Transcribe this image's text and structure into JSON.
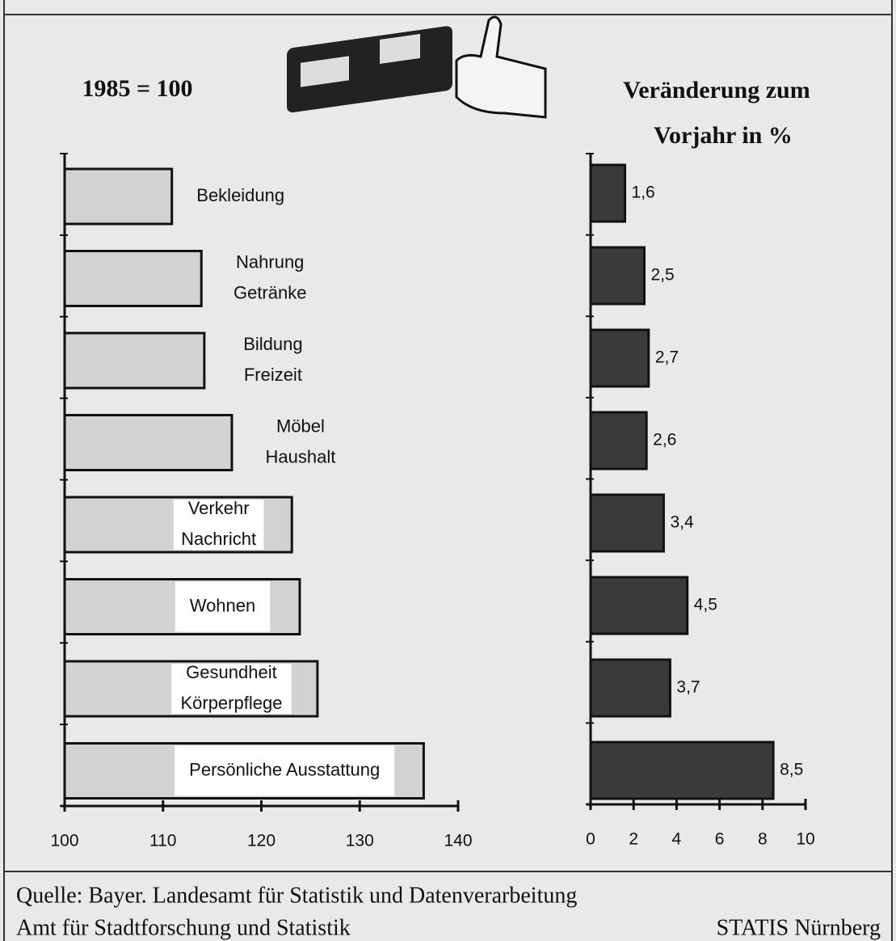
{
  "chart_data": [
    {
      "type": "bar",
      "orientation": "horizontal",
      "title": "1985 = 100",
      "categories": [
        [
          "Bekleidung"
        ],
        [
          "Nahrung",
          "Getränke"
        ],
        [
          "Bildung",
          "Freizeit"
        ],
        [
          "Möbel",
          "Haushalt"
        ],
        [
          "Verkehr",
          "Nachricht"
        ],
        [
          "Wohnen"
        ],
        [
          "Gesundheit",
          "Körperpflege"
        ],
        [
          "Persönliche Ausstattung"
        ]
      ],
      "values": [
        110.9,
        113.9,
        114.2,
        117.0,
        123.1,
        123.9,
        125.7,
        136.5
      ],
      "color": "#d2d2d2",
      "xlim": [
        100,
        140
      ],
      "xticks": [
        100,
        110,
        120,
        130,
        140
      ]
    },
    {
      "type": "bar",
      "orientation": "horizontal",
      "title": [
        "Veränderung zum",
        "Vorjahr in %"
      ],
      "values": [
        1.6,
        2.5,
        2.7,
        2.6,
        3.4,
        4.5,
        3.7,
        8.5
      ],
      "value_labels": [
        "1,6",
        "2,5",
        "2,7",
        "2,6",
        "3,4",
        "4,5",
        "3,7",
        "8,5"
      ],
      "color": "#3a3a3a",
      "xlim": [
        0,
        10
      ],
      "xticks": [
        0,
        2,
        4,
        6,
        8,
        10
      ]
    }
  ],
  "footer": {
    "source": "Quelle: Bayer. Landesamt für Statistik und Datenverarbeitung",
    "office": "Amt für Stadtforschung und Statistik",
    "brand": "STATIS Nürnberg"
  }
}
